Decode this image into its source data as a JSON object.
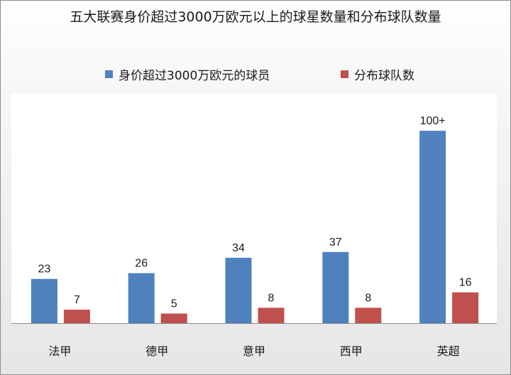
{
  "chart_data": {
    "type": "bar",
    "title": "五大联赛身价超过3000万欧元以上的球星数量和分布球队数量",
    "categories": [
      "法甲",
      "德甲",
      "意甲",
      "西甲",
      "英超"
    ],
    "series": [
      {
        "name": "身价超过3000万欧元的球员",
        "values": [
          23,
          26,
          34,
          37,
          100
        ],
        "labels": [
          "23",
          "26",
          "34",
          "37",
          "100+"
        ],
        "color": "#4f81bd"
      },
      {
        "name": "分布球队数",
        "values": [
          7,
          5,
          8,
          8,
          16
        ],
        "labels": [
          "7",
          "5",
          "8",
          "8",
          "16"
        ],
        "color": "#c0504d"
      }
    ],
    "xlabel": "",
    "ylabel": "",
    "ylim": [
      0,
      120
    ],
    "grid": false,
    "legend_position": "top"
  }
}
